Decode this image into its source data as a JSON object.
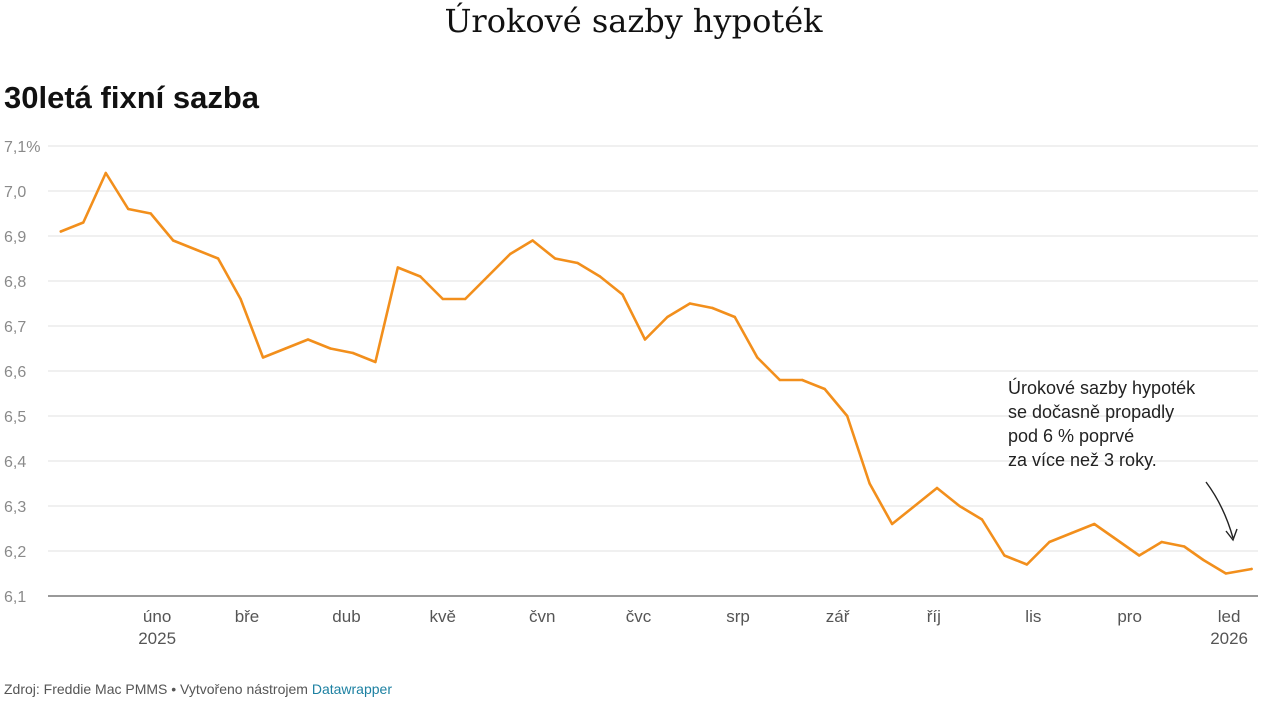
{
  "page": {
    "title": "Úrokové sazby hypoték"
  },
  "chart_data": {
    "type": "line",
    "title": "30letá fixní sazba",
    "xlabel": "",
    "ylabel": "",
    "ylim": [
      6.1,
      7.1
    ],
    "y_ticks": [
      "6,1",
      "6,2",
      "6,3",
      "6,4",
      "6,5",
      "6,6",
      "6,7",
      "6,8",
      "6,9",
      "7,0",
      "7,1%"
    ],
    "x_ticks": [
      {
        "date": "2025-02-01",
        "label": "úno",
        "sub": "2025"
      },
      {
        "date": "2025-03-01",
        "label": "bře",
        "sub": ""
      },
      {
        "date": "2025-04-01",
        "label": "dub",
        "sub": ""
      },
      {
        "date": "2025-05-01",
        "label": "kvě",
        "sub": ""
      },
      {
        "date": "2025-06-01",
        "label": "čvn",
        "sub": ""
      },
      {
        "date": "2025-07-01",
        "label": "čvc",
        "sub": ""
      },
      {
        "date": "2025-08-01",
        "label": "srp",
        "sub": ""
      },
      {
        "date": "2025-09-01",
        "label": "zář",
        "sub": ""
      },
      {
        "date": "2025-10-01",
        "label": "říj",
        "sub": ""
      },
      {
        "date": "2025-11-01",
        "label": "lis",
        "sub": ""
      },
      {
        "date": "2025-12-01",
        "label": "pro",
        "sub": ""
      },
      {
        "date": "2026-01-01",
        "label": "led",
        "sub": "2026"
      }
    ],
    "series": [
      {
        "color": "#f28f1c",
        "x": [
          "2025-01-02",
          "2025-01-09",
          "2025-01-16",
          "2025-01-23",
          "2025-01-30",
          "2025-02-06",
          "2025-02-13",
          "2025-02-20",
          "2025-02-27",
          "2025-03-06",
          "2025-03-13",
          "2025-03-20",
          "2025-03-27",
          "2025-04-03",
          "2025-04-10",
          "2025-04-17",
          "2025-04-24",
          "2025-05-01",
          "2025-05-08",
          "2025-05-15",
          "2025-05-22",
          "2025-05-29",
          "2025-06-05",
          "2025-06-12",
          "2025-06-19",
          "2025-06-26",
          "2025-07-03",
          "2025-07-10",
          "2025-07-17",
          "2025-07-24",
          "2025-07-31",
          "2025-08-07",
          "2025-08-14",
          "2025-08-21",
          "2025-08-28",
          "2025-09-04",
          "2025-09-11",
          "2025-09-18",
          "2025-09-25",
          "2025-10-02",
          "2025-10-09",
          "2025-10-16",
          "2025-10-23",
          "2025-10-30",
          "2025-11-06",
          "2025-11-13",
          "2025-11-20",
          "2025-11-26",
          "2025-12-04",
          "2025-12-11",
          "2025-12-18",
          "2025-12-24",
          "2025-12-31",
          "2026-01-08"
        ],
        "values": [
          6.91,
          6.93,
          7.04,
          6.96,
          6.95,
          6.89,
          6.87,
          6.85,
          6.76,
          6.63,
          6.65,
          6.67,
          6.65,
          6.64,
          6.62,
          6.83,
          6.81,
          6.76,
          6.76,
          6.81,
          6.86,
          6.89,
          6.85,
          6.84,
          6.81,
          6.77,
          6.67,
          6.72,
          6.75,
          6.74,
          6.72,
          6.63,
          6.58,
          6.58,
          6.56,
          6.5,
          6.35,
          6.26,
          6.3,
          6.34,
          6.3,
          6.27,
          6.19,
          6.17,
          6.22,
          6.24,
          6.26,
          6.23,
          6.19,
          6.22,
          6.21,
          6.18,
          6.15,
          6.16
        ]
      }
    ],
    "x_domain": [
      "2024-12-29",
      "2026-01-10"
    ],
    "annotation": {
      "lines": [
        "Úrokové sazby hypoték",
        "se dočasně propadly",
        "pod 6 % poprvé",
        "za více než 3 roky."
      ]
    },
    "grid": true,
    "legend": "none"
  },
  "footer": {
    "source": "Zdroj: Freddie Mac PMMS • Vytvořeno nástrojem ",
    "tool": "Datawrapper"
  }
}
